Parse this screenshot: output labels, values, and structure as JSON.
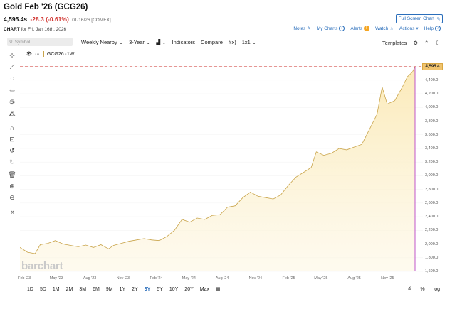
{
  "header": {
    "title": "Gold Feb '26 (GCG26)",
    "price": "4,595.4s",
    "change": "-28.3 (-0.61%)",
    "meta": "01/16/26 [COMEX]",
    "fullscreen_label": "Full Screen Chart"
  },
  "chart_label": {
    "prefix": "CHART",
    "date": "for Fri, Jan 16th, 2026"
  },
  "top_links": {
    "notes": "Notes",
    "my_charts": "My Charts",
    "alerts": "Alerts",
    "watch": "Watch",
    "actions": "Actions",
    "help": "Help"
  },
  "toolbar": {
    "symbol_placeholder": "Symbol...",
    "interval": "Weekly Nearby",
    "period": "3-Year",
    "indicators": "Indicators",
    "compare": "Compare",
    "fx": "f(x)",
    "layout": "1x1",
    "templates": "Templates"
  },
  "legend": {
    "symbol": "GCG26 ·1W"
  },
  "watermark": "barchart",
  "last_price_tag": "4,595.4",
  "range_buttons": [
    "1D",
    "5D",
    "1M",
    "2M",
    "3M",
    "6M",
    "9M",
    "1Y",
    "2Y",
    "3Y",
    "5Y",
    "10Y",
    "20Y",
    "Max"
  ],
  "active_range": "3Y",
  "bottom_right": {
    "percent": "%",
    "log": "log"
  },
  "colors": {
    "accent": "#2a6ebb",
    "line": "#c9a44a",
    "fill": "#fbeec6",
    "price_line": "#d0312d",
    "cursor": "#b02cbf"
  },
  "chart_data": {
    "type": "area",
    "title": "Gold Feb '26 (GCG26)",
    "xlabel": "",
    "ylabel": "",
    "ylim": [
      1600,
      4700
    ],
    "y_ticks": [
      1600,
      1800,
      2000,
      2200,
      2400,
      2600,
      2800,
      3000,
      3200,
      3400,
      3600,
      3800,
      4000,
      4200,
      4400,
      4600
    ],
    "y_tick_labels": [
      "1,600.0",
      "1,800.0",
      "2,000.0",
      "2,200.0",
      "2,400.0",
      "2,600.0",
      "2,800.0",
      "3,000.0",
      "3,200.0",
      "3,400.0",
      "3,600.0",
      "3,800.0",
      "4,000.0",
      "4,200.0",
      "4,400.0",
      "4,600.0"
    ],
    "x_ticks": [
      {
        "label": "Feb '23",
        "date": "2023-02-01"
      },
      {
        "label": "May '23",
        "date": "2023-05-01"
      },
      {
        "label": "Aug '23",
        "date": "2023-08-01"
      },
      {
        "label": "Nov '23",
        "date": "2023-11-01"
      },
      {
        "label": "Feb '24",
        "date": "2024-02-01"
      },
      {
        "label": "May '24",
        "date": "2024-05-01"
      },
      {
        "label": "Aug '24",
        "date": "2024-08-01"
      },
      {
        "label": "Nov '24",
        "date": "2024-11-01"
      },
      {
        "label": "Feb '25",
        "date": "2025-02-01"
      },
      {
        "label": "May '25",
        "date": "2025-05-01"
      },
      {
        "label": "Aug '25",
        "date": "2025-08-01"
      },
      {
        "label": "Nov '25",
        "date": "2025-11-01"
      }
    ],
    "x_range": [
      "2023-01-20",
      "2026-01-16"
    ],
    "last_value": 4595.4,
    "series": [
      {
        "name": "GCG26",
        "x": [
          "2023-01-20",
          "2023-02-10",
          "2023-03-03",
          "2023-03-17",
          "2023-04-07",
          "2023-04-28",
          "2023-05-19",
          "2023-06-09",
          "2023-06-30",
          "2023-07-21",
          "2023-08-11",
          "2023-09-01",
          "2023-09-22",
          "2023-10-06",
          "2023-10-27",
          "2023-11-17",
          "2023-12-08",
          "2023-12-29",
          "2024-01-19",
          "2024-02-09",
          "2024-03-01",
          "2024-03-22",
          "2024-04-12",
          "2024-05-03",
          "2024-05-24",
          "2024-06-14",
          "2024-07-05",
          "2024-07-26",
          "2024-08-16",
          "2024-09-06",
          "2024-09-27",
          "2024-10-18",
          "2024-11-08",
          "2024-11-29",
          "2024-12-20",
          "2025-01-10",
          "2025-01-31",
          "2025-02-21",
          "2025-03-14",
          "2025-04-04",
          "2025-04-18",
          "2025-05-09",
          "2025-05-30",
          "2025-06-20",
          "2025-07-11",
          "2025-08-01",
          "2025-08-22",
          "2025-09-12",
          "2025-10-03",
          "2025-10-17",
          "2025-10-31",
          "2025-11-21",
          "2025-12-12",
          "2025-12-26",
          "2026-01-09",
          "2026-01-16"
        ],
        "values": [
          1950,
          1880,
          1860,
          1990,
          2010,
          2050,
          2000,
          1980,
          1960,
          1985,
          1950,
          1990,
          1930,
          1980,
          2010,
          2040,
          2060,
          2080,
          2060,
          2050,
          2110,
          2200,
          2360,
          2320,
          2380,
          2360,
          2420,
          2430,
          2540,
          2560,
          2680,
          2760,
          2700,
          2680,
          2660,
          2720,
          2860,
          2980,
          3050,
          3120,
          3350,
          3300,
          3330,
          3400,
          3380,
          3420,
          3460,
          3680,
          3900,
          4300,
          4050,
          4100,
          4300,
          4450,
          4520,
          4595
        ]
      }
    ]
  }
}
